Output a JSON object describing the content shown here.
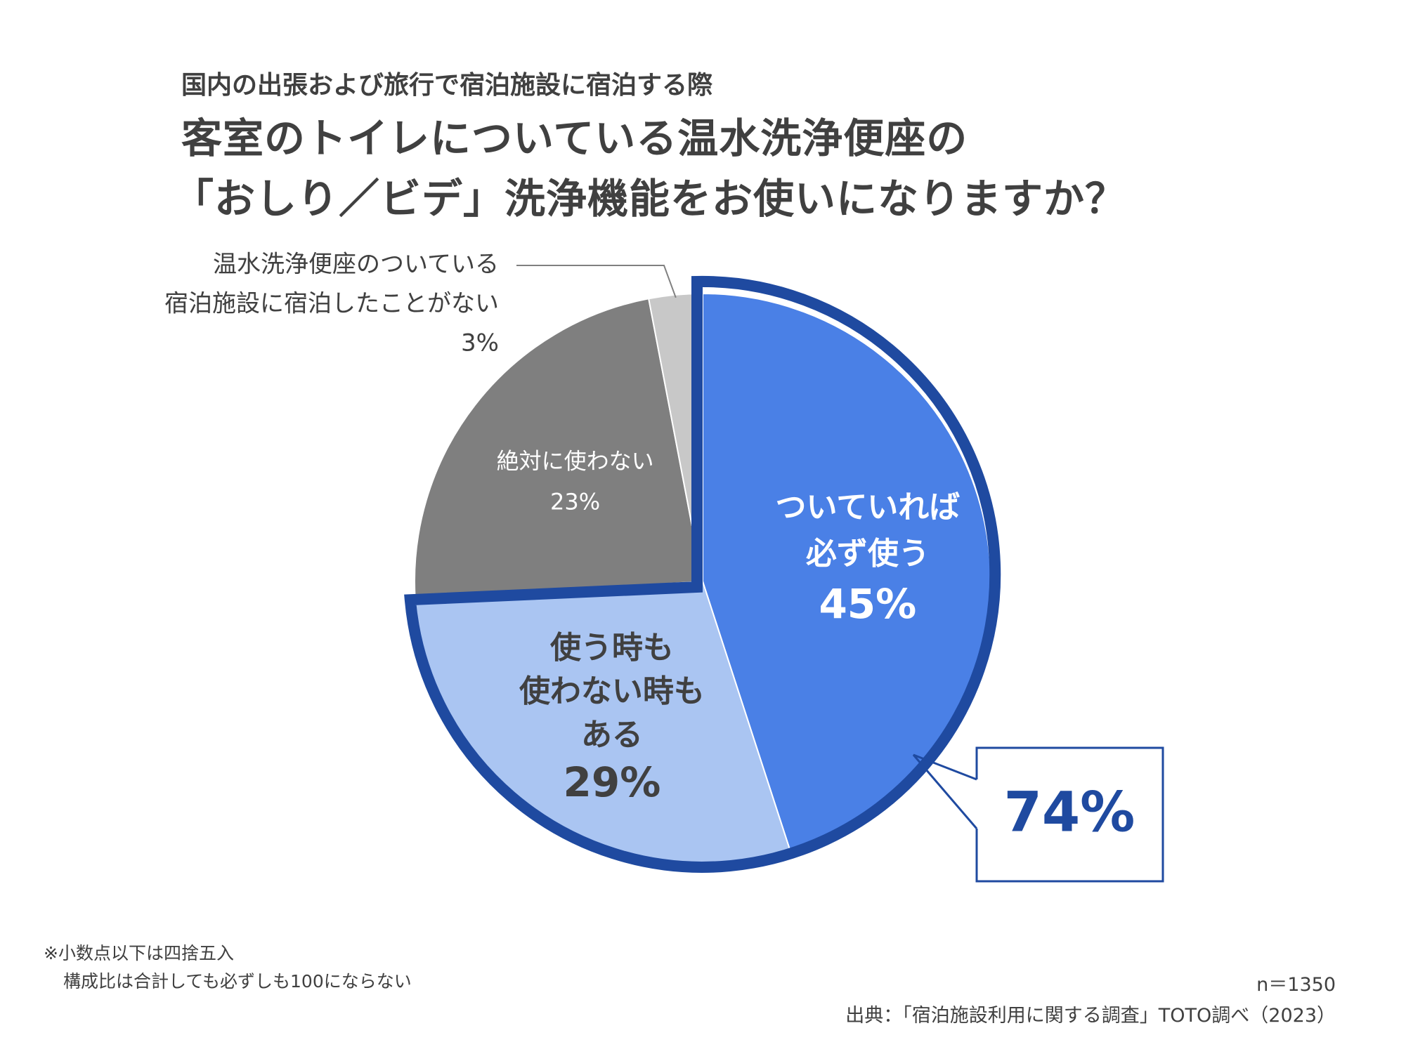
{
  "header": {
    "subtitle": "国内の出張および旅行で宿泊施設に宿泊する際",
    "title_line1": "客室のトイレについている温水洗浄便座の",
    "title_line2": "「おしり／ビデ」洗浄機能をお使いになりますか？"
  },
  "chart_data": {
    "type": "pie",
    "title": "客室のトイレについている温水洗浄便座の「おしり／ビデ」洗浄機能をお使いになりますか？",
    "slices": [
      {
        "label_lines": [
          "ついていれば",
          "必ず使う"
        ],
        "value": 45,
        "value_label": "45%",
        "color": "#4a80e6",
        "label_color": "#ffffff"
      },
      {
        "label_lines": [
          "使う時も",
          "使わない時も",
          "ある"
        ],
        "value": 29,
        "value_label": "29%",
        "color": "#aac5f2",
        "label_color": "#404040"
      },
      {
        "label_lines": [
          "絶対に使わない"
        ],
        "value": 23,
        "value_label": "23%",
        "color": "#7f7f7f",
        "label_color": "#ffffff"
      },
      {
        "label_lines": [
          "温水洗浄便座のついている",
          "宿泊施設に宿泊したことがない"
        ],
        "value": 3,
        "value_label": "3%",
        "color": "#c8c8c8",
        "label_color": "#404040"
      }
    ],
    "highlight": {
      "value_label": "74%",
      "slices": [
        0,
        1
      ],
      "outline_color": "#1f4aa0"
    }
  },
  "footer": {
    "note_line1": "※小数点以下は四捨五入",
    "note_line2": "構成比は合計しても必ずしも100にならない",
    "n": "n＝1350",
    "source": "出典：「宿泊施設利用に関する調査」TOTO調べ（2023）"
  }
}
